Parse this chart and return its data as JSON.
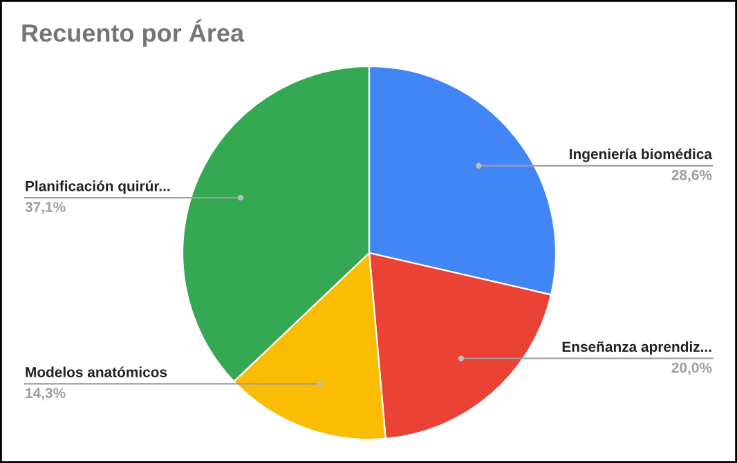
{
  "chart_data": {
    "type": "pie",
    "title": "Recuento por Área",
    "categories": [
      "Ingeniería biomédica",
      "Enseñanza aprendiz...",
      "Modelos anatómicos",
      "Planificación quirúr..."
    ],
    "values": [
      28.6,
      20.0,
      14.3,
      37.1
    ],
    "value_labels": [
      "28,6%",
      "20,0%",
      "14,3%",
      "37,1%"
    ],
    "colors": [
      "#4285f4",
      "#ea4335",
      "#fbbc04",
      "#34a853"
    ]
  }
}
